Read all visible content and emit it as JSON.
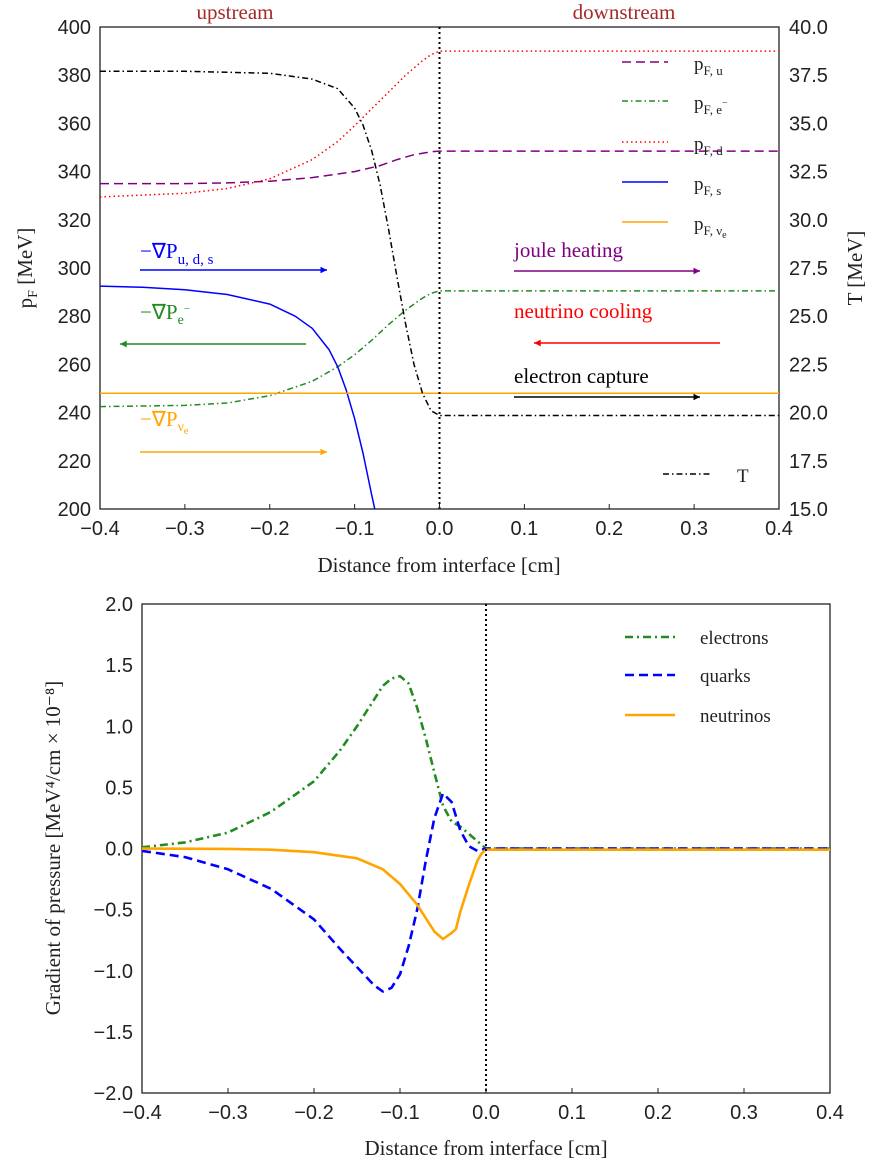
{
  "colors": {
    "purple": "#800080",
    "green": "#228B22",
    "red": "#FF0000",
    "blue": "#0000FF",
    "orange": "#FFA500",
    "black": "#000000",
    "brown": "#A52A2A"
  },
  "chart_data": [
    {
      "type": "line",
      "xlabel": "Distance from interface [cm]",
      "ylabel": "p_F [MeV]",
      "ylabel2": "T [MeV]",
      "xlim": [
        -0.4,
        0.4
      ],
      "ylim": [
        200,
        400
      ],
      "ylim2": [
        15.0,
        40.0
      ],
      "xticks": [
        "−0.4",
        "−0.3",
        "−0.2",
        "−0.1",
        "0.0",
        "0.1",
        "0.2",
        "0.3",
        "0.4"
      ],
      "yticks": [
        "200",
        "220",
        "240",
        "260",
        "280",
        "300",
        "320",
        "340",
        "360",
        "380",
        "400"
      ],
      "yticks2": [
        "15.0",
        "17.5",
        "20.0",
        "22.5",
        "25.0",
        "27.5",
        "30.0",
        "32.5",
        "35.0",
        "37.5",
        "40.0"
      ],
      "grid": false,
      "legend_position": "upper-right",
      "labels": {
        "upstream": "upstream",
        "downstream": "downstream",
        "grad_quarks": "−∇P",
        "grad_quarks_sub": "u, d, s",
        "grad_electrons": "−∇P",
        "grad_electrons_sub": "e",
        "grad_electrons_sup": "−",
        "grad_neutrinos": "−∇P",
        "grad_neutrinos_sub": "ν",
        "grad_neutrinos_subsub": "e",
        "joule": "joule heating",
        "cooling": "neutrino cooling",
        "capture": "electron capture"
      },
      "series": [
        {
          "name": "p_F,u",
          "legend_main": "p",
          "legend_sub": "F, u",
          "color": "#800080",
          "dash": "dashed",
          "x": [
            -0.4,
            -0.3,
            -0.25,
            -0.2,
            -0.15,
            -0.1,
            -0.07,
            -0.05,
            -0.03,
            -0.01,
            0.0,
            0.1,
            0.2,
            0.3,
            0.4
          ],
          "y": [
            335,
            335,
            335.3,
            336,
            337.5,
            340,
            342.5,
            345,
            347,
            348.2,
            348.5,
            348.5,
            348.5,
            348.5,
            348.5
          ]
        },
        {
          "name": "p_F,e⁻",
          "legend_main": "p",
          "legend_sub": "F, e",
          "legend_sup": "−",
          "color": "#228B22",
          "dash": "dashdot",
          "x": [
            -0.4,
            -0.3,
            -0.25,
            -0.2,
            -0.15,
            -0.12,
            -0.1,
            -0.08,
            -0.06,
            -0.04,
            -0.02,
            -0.01,
            0.0,
            0.1,
            0.2,
            0.3,
            0.4
          ],
          "y": [
            242.5,
            243,
            244,
            247,
            253,
            259,
            264,
            270,
            276.5,
            282.5,
            287.5,
            289.5,
            290.5,
            290.5,
            290.5,
            290.5,
            290.5
          ]
        },
        {
          "name": "p_F,d",
          "legend_main": "p",
          "legend_sub": "F, d",
          "color": "#FF0000",
          "dash": "dotted",
          "x": [
            -0.4,
            -0.3,
            -0.25,
            -0.2,
            -0.15,
            -0.12,
            -0.1,
            -0.08,
            -0.06,
            -0.04,
            -0.02,
            -0.01,
            0.0,
            0.1,
            0.2,
            0.3,
            0.4
          ],
          "y": [
            329.5,
            331,
            333,
            337,
            345,
            352.5,
            359,
            366,
            373,
            380,
            386,
            388.5,
            390,
            390,
            390,
            390,
            390
          ]
        },
        {
          "name": "p_F,s",
          "legend_main": "p",
          "legend_sub": "F, s",
          "color": "#0000FF",
          "dash": "solid",
          "x": [
            -0.4,
            -0.35,
            -0.3,
            -0.25,
            -0.2,
            -0.17,
            -0.15,
            -0.13,
            -0.12,
            -0.11,
            -0.1,
            -0.09,
            -0.08,
            -0.075
          ],
          "y": [
            292.5,
            292,
            291,
            289,
            285,
            280,
            275,
            266,
            259,
            249.5,
            237.5,
            223,
            206,
            198
          ]
        },
        {
          "name": "p_F,νe",
          "legend_main": "p",
          "legend_sub": "F, ν",
          "legend_subsub": "e",
          "color": "#FFA500",
          "dash": "solid",
          "x": [
            -0.4,
            0.4
          ],
          "y": [
            248,
            248
          ]
        },
        {
          "name": "T",
          "legend_main": "T",
          "color": "#000000",
          "dash": "dashdot",
          "axis": "right",
          "x": [
            -0.4,
            -0.3,
            -0.2,
            -0.15,
            -0.12,
            -0.1,
            -0.09,
            -0.08,
            -0.07,
            -0.06,
            -0.05,
            -0.04,
            -0.03,
            -0.02,
            -0.01,
            0.0,
            0.1,
            0.2,
            0.3,
            0.4
          ],
          "y": [
            37.7,
            37.7,
            37.6,
            37.3,
            36.8,
            35.8,
            34.9,
            33.6,
            31.8,
            29.5,
            27.0,
            24.6,
            22.5,
            21.0,
            20.1,
            19.85,
            19.85,
            19.85,
            19.85,
            19.85
          ]
        }
      ]
    },
    {
      "type": "line",
      "xlabel": "Distance from interface [cm]",
      "ylabel": "Gradient of pressure [MeV⁴/cm × 10⁻⁸]",
      "xlim": [
        -0.4,
        0.4
      ],
      "ylim": [
        -2.0,
        2.0
      ],
      "xticks": [
        "−0.4",
        "−0.3",
        "−0.2",
        "−0.1",
        "0.0",
        "0.1",
        "0.2",
        "0.3",
        "0.4"
      ],
      "yticks": [
        "−2.0",
        "−1.5",
        "−1.0",
        "−0.5",
        "0.0",
        "0.5",
        "1.0",
        "1.5",
        "2.0"
      ],
      "grid": false,
      "legend_position": "upper-right",
      "series": [
        {
          "name": "electrons",
          "color": "#228B22",
          "dash": "dashdot",
          "x": [
            -0.4,
            -0.35,
            -0.3,
            -0.25,
            -0.2,
            -0.17,
            -0.15,
            -0.13,
            -0.12,
            -0.11,
            -0.1,
            -0.09,
            -0.08,
            -0.07,
            -0.06,
            -0.05,
            -0.04,
            -0.03,
            -0.02,
            -0.01,
            0.0,
            0.1,
            0.2,
            0.3,
            0.4
          ],
          "y": [
            0.01,
            0.05,
            0.13,
            0.3,
            0.55,
            0.8,
            1.0,
            1.22,
            1.33,
            1.39,
            1.41,
            1.35,
            1.15,
            0.9,
            0.62,
            0.35,
            0.22,
            0.18,
            0.12,
            0.06,
            0.0,
            0.0,
            0.0,
            0.0,
            0.0
          ]
        },
        {
          "name": "quarks",
          "color": "#0000FF",
          "dash": "dashed",
          "x": [
            -0.4,
            -0.35,
            -0.3,
            -0.25,
            -0.2,
            -0.17,
            -0.15,
            -0.13,
            -0.12,
            -0.11,
            -0.1,
            -0.09,
            -0.08,
            -0.07,
            -0.06,
            -0.05,
            -0.04,
            -0.03,
            -0.02,
            -0.01,
            0.0,
            0.1,
            0.2,
            0.3,
            0.4
          ],
          "y": [
            -0.02,
            -0.07,
            -0.17,
            -0.33,
            -0.58,
            -0.82,
            -0.97,
            -1.12,
            -1.17,
            -1.14,
            -1.03,
            -0.8,
            -0.5,
            -0.1,
            0.25,
            0.45,
            0.38,
            0.15,
            0.02,
            -0.02,
            0.0,
            0.0,
            0.0,
            0.0,
            0.0
          ]
        },
        {
          "name": "neutrinos",
          "color": "#FFA500",
          "dash": "solid",
          "x": [
            -0.4,
            -0.3,
            -0.25,
            -0.2,
            -0.15,
            -0.12,
            -0.1,
            -0.08,
            -0.07,
            -0.06,
            -0.05,
            -0.04,
            -0.035,
            -0.03,
            -0.02,
            -0.01,
            -0.005,
            0.0,
            0.1,
            0.2,
            0.3,
            0.4
          ],
          "y": [
            -0.001,
            -0.003,
            -0.01,
            -0.03,
            -0.08,
            -0.17,
            -0.29,
            -0.46,
            -0.57,
            -0.68,
            -0.74,
            -0.69,
            -0.66,
            -0.52,
            -0.3,
            -0.1,
            -0.04,
            -0.01,
            -0.01,
            -0.01,
            -0.01,
            -0.01
          ]
        }
      ]
    }
  ]
}
